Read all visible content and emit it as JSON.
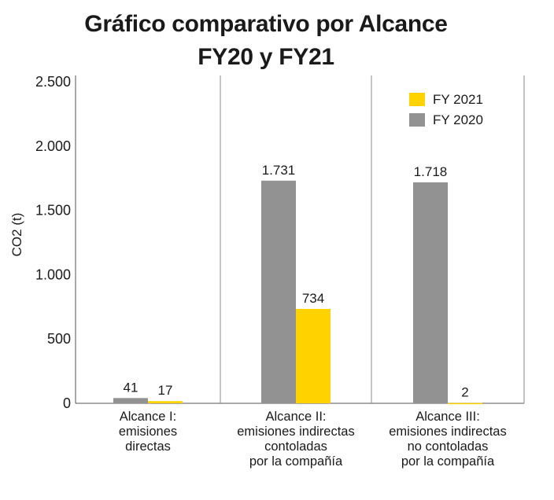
{
  "chart_data": {
    "type": "bar",
    "title": "Gráfico comparativo por Alcance",
    "subtitle": "FY20 y FY21",
    "ylabel": "CO2 (t)",
    "ylim": [
      0,
      2500
    ],
    "yticks": [
      0,
      500,
      1000,
      1500,
      2000,
      2500
    ],
    "ytick_labels": [
      "0",
      "500",
      "1.000",
      "1.500",
      "2.000",
      "2.500"
    ],
    "categories": [
      [
        "Alcance I:",
        "emisiones",
        "directas"
      ],
      [
        "Alcance II:",
        "emisiones indirectas",
        "contoladas",
        "por la compañía"
      ],
      [
        "Alcance III:",
        "emisiones indirectas",
        "no contoladas",
        "por la compañía"
      ]
    ],
    "series": [
      {
        "name": "FY 2020",
        "color": "#929293",
        "values": [
          41,
          1731,
          1718
        ],
        "labels": [
          "41",
          "1.731",
          "1.718"
        ]
      },
      {
        "name": "FY 2021",
        "color": "#ffd200",
        "values": [
          17,
          734,
          2
        ],
        "labels": [
          "17",
          "734",
          "2"
        ]
      }
    ],
    "legend": {
      "position": "top-right",
      "order": [
        "FY 2021",
        "FY 2020"
      ]
    },
    "grid": false
  }
}
